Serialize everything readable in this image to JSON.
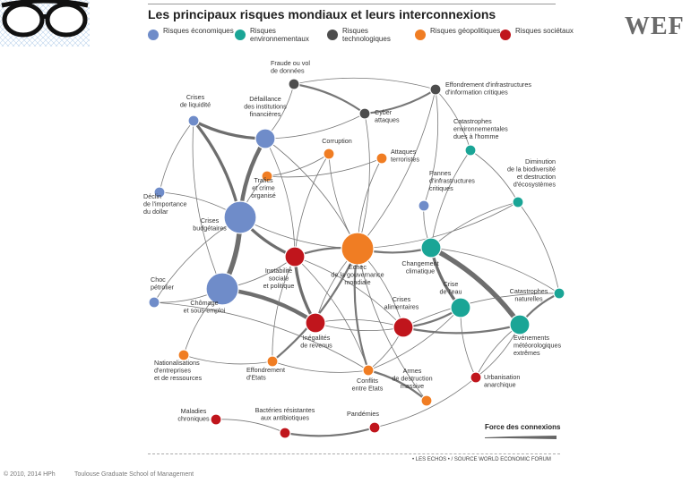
{
  "brand": {
    "wef_label": "WEF"
  },
  "header": {
    "title": "Les principaux risques mondiaux et leurs interconnexions"
  },
  "legend": [
    {
      "label": "Risques économiques",
      "color": "#6f8cc9"
    },
    {
      "label": "Risques environnementaux",
      "color": "#1aa596"
    },
    {
      "label": "Risques technologiques",
      "color": "#4d4d4d"
    },
    {
      "label": "Risques géopolitiques",
      "color": "#f07d23"
    },
    {
      "label": "Risques sociétaux",
      "color": "#c0151c"
    }
  ],
  "colors": {
    "economic": "#6f8cc9",
    "environmental": "#1aa596",
    "technological": "#4d4d4d",
    "geopolitical": "#f07d23",
    "societal": "#c0151c",
    "edge": "#777777"
  },
  "nodes": [
    {
      "id": "fraude",
      "label": "Fraude ou vol\nde données",
      "type": "technological",
      "size": "s"
    },
    {
      "id": "effondrement_info",
      "label": "Effondrement d'infrastructures\nd'information critiques",
      "type": "technological",
      "size": "s"
    },
    {
      "id": "cyber",
      "label": "Cyber\nattaques",
      "type": "technological",
      "size": "s"
    },
    {
      "id": "crises_liquidite",
      "label": "Crises\nde liquidité",
      "type": "economic",
      "size": "s"
    },
    {
      "id": "defaillance",
      "label": "Défaillance\ndes institutions\nfinancières",
      "type": "economic",
      "size": "m"
    },
    {
      "id": "corruption",
      "label": "Corruption",
      "type": "geopolitical",
      "size": "s"
    },
    {
      "id": "attaques",
      "label": "Attaques\nterroristes",
      "type": "geopolitical",
      "size": "s"
    },
    {
      "id": "catastrophes_homme",
      "label": "Catastrophes\nenvironnementales\ndues à l'homme",
      "type": "environmental",
      "size": "s"
    },
    {
      "id": "trafics",
      "label": "Trafics\net crime\norganisé",
      "type": "geopolitical",
      "size": "s"
    },
    {
      "id": "pannes",
      "label": "Pannes\nd'infrastructures\ncritiques",
      "type": "economic",
      "size": "s"
    },
    {
      "id": "biodiversite",
      "label": "Diminution\nde la biodiversité\net destruction\nd'écosystèmes",
      "type": "environmental",
      "size": "s"
    },
    {
      "id": "dollar",
      "label": "Déclin\nde l'importance\ndu dollar",
      "type": "economic",
      "size": "s"
    },
    {
      "id": "crises_budgetaires",
      "label": "Crises\nbudgétaires",
      "type": "economic",
      "size": "l"
    },
    {
      "id": "instabilite",
      "label": "Instabilité\nsociale\net politique",
      "type": "societal",
      "size": "m"
    },
    {
      "id": "gouvernance",
      "label": "Echec\nde la gouvernance\nmondiale",
      "type": "geopolitical",
      "size": "l"
    },
    {
      "id": "changement",
      "label": "Changement\nclimatique",
      "type": "environmental",
      "size": "m"
    },
    {
      "id": "choc_petrolier",
      "label": "Choc\npétrolier",
      "type": "economic",
      "size": "s"
    },
    {
      "id": "chomage",
      "label": "Chômage\net sous-emploi",
      "type": "economic",
      "size": "l"
    },
    {
      "id": "crise_eau",
      "label": "Crise\nde l'eau",
      "type": "environmental",
      "size": "m"
    },
    {
      "id": "catastrophes_naturelles",
      "label": "Catastrophes\nnaturelles",
      "type": "environmental",
      "size": "s"
    },
    {
      "id": "crises_alimentaires",
      "label": "Crises\nalimentaires",
      "type": "societal",
      "size": "m"
    },
    {
      "id": "inegalites",
      "label": "Inégalités\nde revenus",
      "type": "societal",
      "size": "m"
    },
    {
      "id": "meteo",
      "label": "Evénements\nmétéorologiques\nextrêmes",
      "type": "environmental",
      "size": "m"
    },
    {
      "id": "nationalisations",
      "label": "Nationalisations\nd'entreprises\net de ressources",
      "type": "geopolitical",
      "size": "s"
    },
    {
      "id": "effondrement_etats",
      "label": "Effondrement\nd'Etats",
      "type": "geopolitical",
      "size": "s"
    },
    {
      "id": "conflits",
      "label": "Conflits\nentre Etats",
      "type": "geopolitical",
      "size": "s"
    },
    {
      "id": "armes",
      "label": "Armes\nde destruction\nmassive",
      "type": "geopolitical",
      "size": "s"
    },
    {
      "id": "urbanisation",
      "label": "Urbanisation\nanarchique",
      "type": "societal",
      "size": "s"
    },
    {
      "id": "maladies",
      "label": "Maladies\nchroniques",
      "type": "societal",
      "size": "s"
    },
    {
      "id": "bacteries",
      "label": "Bactéries résistantes\naux antibiotiques",
      "type": "societal",
      "size": "s"
    },
    {
      "id": "pandemies",
      "label": "Pandémies",
      "type": "societal",
      "size": "s"
    }
  ],
  "edges": [
    [
      "fraude",
      "cyber",
      2
    ],
    [
      "cyber",
      "effondrement_info",
      2
    ],
    [
      "fraude",
      "effondrement_info",
      1
    ],
    [
      "crises_liquidite",
      "defaillance",
      3
    ],
    [
      "crises_liquidite",
      "crises_budgetaires",
      3
    ],
    [
      "defaillance",
      "crises_budgetaires",
      4
    ],
    [
      "crises_budgetaires",
      "chomage",
      5
    ],
    [
      "crises_budgetaires",
      "instabilite",
      3
    ],
    [
      "chomage",
      "inegalites",
      4
    ],
    [
      "instabilite",
      "inegalites",
      3
    ],
    [
      "instabilite",
      "gouvernance",
      2
    ],
    [
      "gouvernance",
      "changement",
      2
    ],
    [
      "changement",
      "meteo",
      5
    ],
    [
      "changement",
      "crise_eau",
      3
    ],
    [
      "crise_eau",
      "crises_alimentaires",
      2
    ],
    [
      "crises_alimentaires",
      "meteo",
      2
    ],
    [
      "meteo",
      "catastrophes_naturelles",
      2
    ],
    [
      "gouvernance",
      "conflits",
      2
    ],
    [
      "conflits",
      "armes",
      2
    ],
    [
      "effondrement_etats",
      "gouvernance",
      2
    ],
    [
      "pandemies",
      "bacteries",
      2
    ],
    [
      "bacteries",
      "maladies",
      1
    ],
    [
      "defaillance",
      "gouvernance",
      1
    ],
    [
      "corruption",
      "gouvernance",
      1
    ],
    [
      "corruption",
      "trafics",
      1
    ],
    [
      "trafics",
      "crises_budgetaires",
      1
    ],
    [
      "dollar",
      "crises_budgetaires",
      1
    ],
    [
      "crises_liquidite",
      "dollar",
      1
    ],
    [
      "choc_petrolier",
      "crises_budgetaires",
      1
    ],
    [
      "choc_petrolier",
      "chomage",
      1
    ],
    [
      "nationalisations",
      "chomage",
      1
    ],
    [
      "nationalisations",
      "effondrement_etats",
      1
    ],
    [
      "effondrement_etats",
      "instabilite",
      1
    ],
    [
      "attaques",
      "gouvernance",
      1
    ],
    [
      "cyber",
      "gouvernance",
      1
    ],
    [
      "pannes",
      "changement",
      1
    ],
    [
      "catastrophes_homme",
      "biodiversite",
      1
    ],
    [
      "catastrophes_homme",
      "changement",
      1
    ],
    [
      "biodiversite",
      "catastrophes_naturelles",
      1
    ],
    [
      "biodiversite",
      "changement",
      1
    ],
    [
      "urbanisation",
      "crise_eau",
      1
    ],
    [
      "urbanisation",
      "meteo",
      1
    ],
    [
      "crises_alimentaires",
      "inegalites",
      1
    ],
    [
      "crises_alimentaires",
      "instabilite",
      1
    ],
    [
      "armes",
      "gouvernance",
      1
    ],
    [
      "conflits",
      "crises_alimentaires",
      1
    ],
    [
      "effondrement_info",
      "pannes",
      1
    ],
    [
      "defaillance",
      "cyber",
      1
    ],
    [
      "gouvernance",
      "crises_alimentaires",
      1
    ],
    [
      "crises_budgetaires",
      "gouvernance",
      1
    ],
    [
      "changement",
      "catastrophes_naturelles",
      1
    ],
    [
      "gouvernance",
      "inegalites",
      1
    ],
    [
      "instabilite",
      "conflits",
      1
    ],
    [
      "chomage",
      "instabilite",
      1
    ],
    [
      "defaillance",
      "instabilite",
      1
    ],
    [
      "gouvernance",
      "biodiversite",
      1
    ],
    [
      "effondrement_info",
      "catastrophes_homme",
      1
    ],
    [
      "crises_liquidite",
      "chomage",
      1
    ],
    [
      "choc_petrolier",
      "conflits",
      1
    ],
    [
      "pandemies",
      "urbanisation",
      1
    ],
    [
      "attaques",
      "trafics",
      1
    ],
    [
      "effondrement_etats",
      "conflits",
      1
    ],
    [
      "inegalites",
      "crises_alimentaires",
      1
    ],
    [
      "meteo",
      "urbanisation",
      1
    ],
    [
      "crise_eau",
      "conflits",
      1
    ],
    [
      "catastrophes_naturelles",
      "crises_alimentaires",
      1
    ],
    [
      "fraude",
      "defaillance",
      1
    ],
    [
      "corruption",
      "instabilite",
      1
    ],
    [
      "effondrement_info",
      "gouvernance",
      1
    ]
  ],
  "force_legend": {
    "title": "Force des connexions"
  },
  "source": "• LES ECHOS • / SOURCE  WORLD ECONOMIC FORUM",
  "footer": {
    "copyright": "© 2010, 2014 HPh",
    "school": "Toulouse Graduate School of Management"
  }
}
